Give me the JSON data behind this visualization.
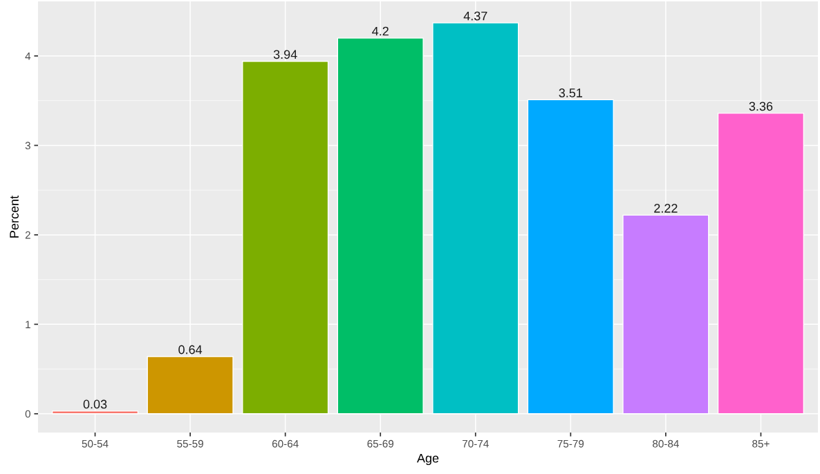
{
  "chart_data": {
    "type": "bar",
    "xlabel": "Age",
    "ylabel": "Percent",
    "categories": [
      "50-54",
      "55-59",
      "60-64",
      "65-69",
      "70-74",
      "75-79",
      "80-84",
      "85+"
    ],
    "values": [
      0.03,
      0.64,
      3.94,
      4.2,
      4.37,
      3.51,
      2.22,
      3.36
    ],
    "colors": [
      "#f8766d",
      "#cd9600",
      "#7cae00",
      "#00be67",
      "#00bfc4",
      "#00a9ff",
      "#c77cff",
      "#ff61cc"
    ],
    "ylim": [
      -0.21,
      4.61
    ],
    "yticks": [
      0,
      1,
      2,
      3,
      4
    ],
    "grid": true,
    "data_labels": true,
    "legend": false
  }
}
